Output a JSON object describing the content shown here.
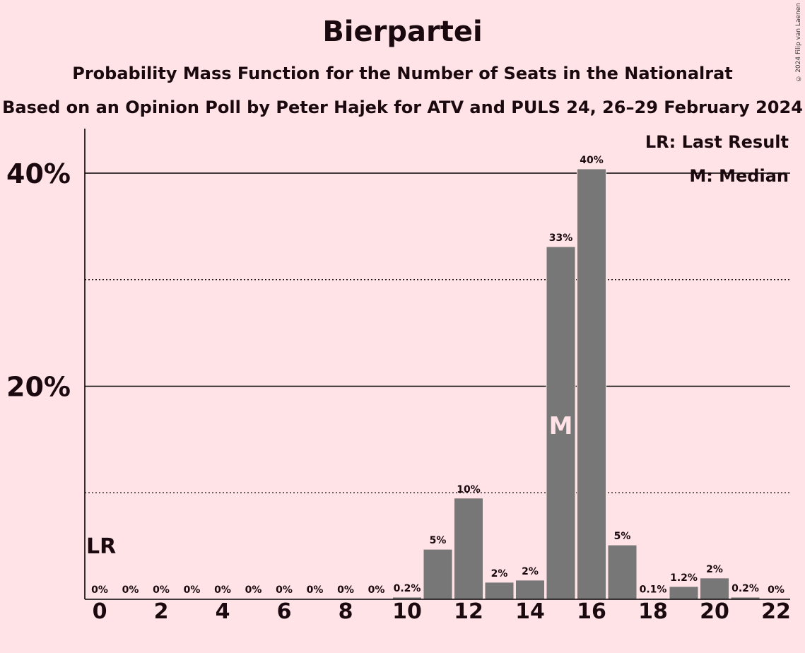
{
  "title": "Bierpartei",
  "subtitle": "Probability Mass Function for the Number of Seats in the Nationalrat",
  "subtitle2": "Based on an Opinion Poll by Peter Hajek for ATV and PULS 24, 26–29 February 2024",
  "copyright": "© 2024 Filip van Laenen",
  "legend": {
    "last_result": "LR: Last Result",
    "median": "M: Median"
  },
  "colors": {
    "background": "#FFE3E6",
    "bar": "#777777",
    "text": "#1A0A10",
    "median_label": "#FFE3E6"
  },
  "chart_data": {
    "type": "bar",
    "title": "Bierpartei",
    "x": [
      0,
      1,
      2,
      3,
      4,
      5,
      6,
      7,
      8,
      9,
      10,
      11,
      12,
      13,
      14,
      15,
      16,
      17,
      18,
      19,
      20,
      21,
      22
    ],
    "values": [
      0,
      0,
      0,
      0,
      0,
      0,
      0,
      0,
      0,
      0,
      0.2,
      4.7,
      9.5,
      1.6,
      1.8,
      33.1,
      40.4,
      5.1,
      0.1,
      1.2,
      2.0,
      0.2,
      0
    ],
    "value_labels": [
      "0%",
      "0%",
      "0%",
      "0%",
      "0%",
      "0%",
      "0%",
      "0%",
      "0%",
      "0%",
      "0.2%",
      "5%",
      "10%",
      "2%",
      "2%",
      "33%",
      "40%",
      "5%",
      "0.1%",
      "1.2%",
      "2%",
      "0.2%",
      "0%"
    ],
    "x_tick_labels": [
      "0",
      "2",
      "4",
      "6",
      "8",
      "10",
      "12",
      "14",
      "16",
      "18",
      "20",
      "22"
    ],
    "y_tick_labels": [
      "20%",
      "40%"
    ],
    "ylim": [
      0,
      44
    ],
    "median_seat": 15,
    "median_marker": "M",
    "last_result_seat": 0,
    "last_result_marker": "LR",
    "legend_position": "top-right",
    "grid": "solid at 20% and 40%, dotted at 10% and 30%"
  }
}
